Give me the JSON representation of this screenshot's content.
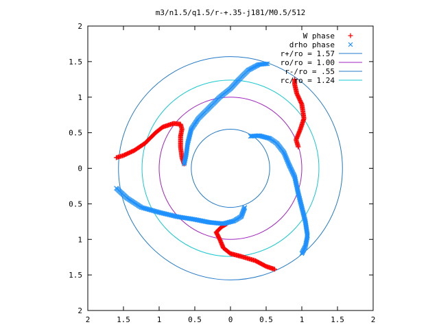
{
  "chart_data": {
    "type": "scatter",
    "title": "m3/n1.5/q1.5/r-+.35-j181/M0.5/512",
    "xlabel": "",
    "ylabel": "",
    "xlim": [
      -2,
      2
    ],
    "ylim": [
      -2,
      2
    ],
    "x_ticks": [
      "2",
      "1.5",
      "1",
      "0.5",
      "0",
      "0.5",
      "1",
      "1.5",
      "2"
    ],
    "y_ticks": [
      "2",
      "1.5",
      "1",
      "0.5",
      "0",
      "0.5",
      "1",
      "1.5",
      "2"
    ],
    "grid": false,
    "legend_position": "top-right",
    "legend": [
      {
        "label": "W phase",
        "marker": "+",
        "color": "#ff0000"
      },
      {
        "label": "drho phase",
        "marker": "x",
        "color": "#1e90ff"
      },
      {
        "label": "r+/ro = 1.57",
        "marker": "line",
        "color": "#1f77c9"
      },
      {
        "label": "ro/ro = 1.00",
        "marker": "line",
        "color": "#a020c0"
      },
      {
        "label": "r-/ro = .55",
        "marker": "line",
        "color": "#1f77c9"
      },
      {
        "label": "rc/ro = 1.24",
        "marker": "line",
        "color": "#12c8d0"
      }
    ],
    "circles": [
      {
        "name": "r+/ro = 1.57",
        "r": 1.57,
        "color": "#1f77c9"
      },
      {
        "name": "ro/ro = 1.00",
        "r": 1.0,
        "color": "#a020c0"
      },
      {
        "name": "r-/ro = .55",
        "r": 0.55,
        "color": "#1f77c9"
      },
      {
        "name": "rc/ro = 1.24",
        "r": 1.24,
        "color": "#12c8d0"
      }
    ],
    "series": [
      {
        "name": "W phase",
        "marker": "+",
        "color": "#ff0000",
        "arms": [
          [
            [
              -1.6,
              0.15
            ],
            [
              -1.5,
              0.18
            ],
            [
              -1.35,
              0.25
            ],
            [
              -1.2,
              0.35
            ],
            [
              -1.05,
              0.5
            ],
            [
              -0.95,
              0.58
            ],
            [
              -0.8,
              0.63
            ],
            [
              -0.7,
              0.62
            ],
            [
              -0.68,
              0.55
            ],
            [
              -0.7,
              0.45
            ],
            [
              -0.7,
              0.3
            ],
            [
              -0.68,
              0.15
            ],
            [
              -0.65,
              0.06
            ]
          ],
          [
            [
              0.95,
              0.3
            ],
            [
              0.92,
              0.4
            ],
            [
              0.98,
              0.55
            ],
            [
              1.03,
              0.7
            ],
            [
              1.0,
              0.9
            ],
            [
              0.93,
              1.05
            ],
            [
              0.9,
              1.18
            ],
            [
              0.9,
              1.25
            ]
          ],
          [
            [
              0.62,
              -1.42
            ],
            [
              0.5,
              -1.38
            ],
            [
              0.35,
              -1.3
            ],
            [
              0.15,
              -1.24
            ],
            [
              0.0,
              -1.2
            ],
            [
              -0.1,
              -1.12
            ],
            [
              -0.15,
              -1.0
            ],
            [
              -0.2,
              -0.9
            ],
            [
              -0.12,
              -0.82
            ],
            [
              -0.05,
              -0.78
            ]
          ]
        ]
      },
      {
        "name": "drho phase",
        "marker": "x",
        "color": "#1e90ff",
        "arms": [
          [
            [
              -0.65,
              0.06
            ],
            [
              -0.62,
              0.2
            ],
            [
              -0.6,
              0.35
            ],
            [
              -0.55,
              0.55
            ],
            [
              -0.45,
              0.7
            ],
            [
              -0.3,
              0.85
            ],
            [
              -0.15,
              1.0
            ],
            [
              0.0,
              1.12
            ],
            [
              0.12,
              1.25
            ],
            [
              0.25,
              1.38
            ],
            [
              0.4,
              1.46
            ],
            [
              0.52,
              1.47
            ]
          ],
          [
            [
              0.28,
              0.45
            ],
            [
              0.4,
              0.46
            ],
            [
              0.55,
              0.42
            ],
            [
              0.65,
              0.35
            ],
            [
              0.75,
              0.22
            ],
            [
              0.82,
              0.05
            ],
            [
              0.9,
              -0.12
            ],
            [
              0.95,
              -0.35
            ],
            [
              1.0,
              -0.55
            ],
            [
              1.05,
              -0.75
            ],
            [
              1.08,
              -0.95
            ],
            [
              1.05,
              -1.1
            ],
            [
              1.0,
              -1.2
            ]
          ],
          [
            [
              -1.6,
              -0.28
            ],
            [
              -1.45,
              -0.42
            ],
            [
              -1.25,
              -0.55
            ],
            [
              -1.0,
              -0.62
            ],
            [
              -0.75,
              -0.68
            ],
            [
              -0.5,
              -0.72
            ],
            [
              -0.3,
              -0.76
            ],
            [
              -0.1,
              -0.78
            ],
            [
              0.05,
              -0.74
            ],
            [
              0.15,
              -0.68
            ],
            [
              0.2,
              -0.55
            ]
          ]
        ]
      }
    ]
  }
}
